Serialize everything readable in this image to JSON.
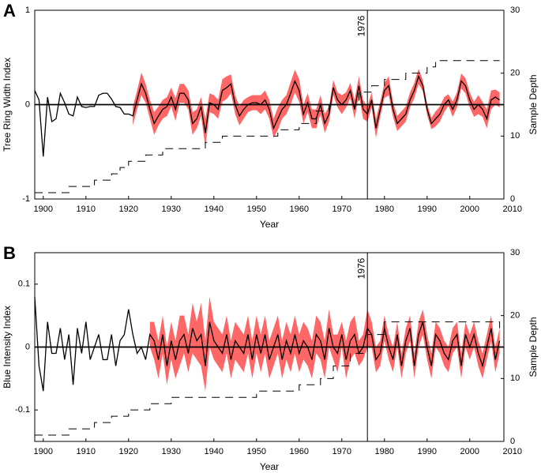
{
  "chart_data": [
    {
      "type": "line",
      "panel_label": "A",
      "ylabel": "Tree Ring Width Index",
      "xlabel": "Year",
      "y2label": "Sample Depth",
      "vline": 1976,
      "xlim": [
        1898,
        2008
      ],
      "xticks": [
        1900,
        1910,
        1920,
        1930,
        1940,
        1950,
        1960,
        1970,
        1980,
        1990,
        2000,
        2010
      ],
      "ylim": [
        -1,
        1
      ],
      "yticks": [
        -1,
        0,
        1
      ],
      "y2lim": [
        0,
        30
      ],
      "y2ticks": [
        0,
        10,
        20,
        30
      ],
      "band_color": "#ff6666",
      "x": [
        1898,
        1899,
        1900,
        1901,
        1902,
        1903,
        1904,
        1905,
        1906,
        1907,
        1908,
        1909,
        1910,
        1911,
        1912,
        1913,
        1914,
        1915,
        1916,
        1917,
        1918,
        1919,
        1920,
        1921,
        1922,
        1923,
        1924,
        1925,
        1926,
        1927,
        1928,
        1929,
        1930,
        1931,
        1932,
        1933,
        1934,
        1935,
        1936,
        1937,
        1938,
        1939,
        1940,
        1941,
        1942,
        1943,
        1944,
        1945,
        1946,
        1947,
        1948,
        1949,
        1950,
        1951,
        1952,
        1953,
        1954,
        1955,
        1956,
        1957,
        1958,
        1959,
        1960,
        1961,
        1962,
        1963,
        1964,
        1965,
        1966,
        1967,
        1968,
        1969,
        1970,
        1971,
        1972,
        1973,
        1974,
        1975,
        1976,
        1977,
        1978,
        1979,
        1980,
        1981,
        1982,
        1983,
        1984,
        1985,
        1986,
        1987,
        1988,
        1989,
        1990,
        1991,
        1992,
        1993,
        1994,
        1995,
        1996,
        1997,
        1998,
        1999,
        2000,
        2001,
        2002,
        2003,
        2004,
        2005,
        2006,
        2007
      ],
      "series": [
        {
          "color": "#000000",
          "values": [
            0.15,
            0.05,
            -0.55,
            0.08,
            -0.18,
            -0.15,
            0.12,
            0.02,
            -0.1,
            -0.12,
            0.08,
            -0.02,
            -0.03,
            -0.02,
            -0.02,
            0.1,
            0.12,
            0.12,
            0.06,
            -0.02,
            -0.03,
            -0.1,
            -0.1,
            -0.12,
            0.05,
            0.22,
            0.12,
            -0.05,
            -0.2,
            -0.12,
            -0.05,
            -0.02,
            0.08,
            -0.05,
            0.12,
            0.12,
            0.05,
            -0.2,
            -0.15,
            -0.02,
            -0.3,
            0.02,
            0.0,
            -0.05,
            0.15,
            0.18,
            0.22,
            0.0,
            -0.12,
            -0.05,
            0.0,
            0.02,
            0.02,
            0.0,
            0.05,
            -0.05,
            -0.25,
            -0.15,
            -0.05,
            0.0,
            0.12,
            0.25,
            0.15,
            -0.1,
            0.02,
            -0.15,
            -0.15,
            0.0,
            -0.2,
            -0.1,
            0.18,
            0.05,
            0.0,
            0.05,
            0.15,
            -0.05,
            0.2,
            -0.05,
            -0.1,
            0.05,
            -0.25,
            -0.05,
            0.15,
            0.2,
            -0.05,
            -0.2,
            -0.15,
            -0.1,
            0.05,
            0.15,
            0.3,
            0.2,
            -0.05,
            -0.2,
            -0.15,
            -0.1,
            0.0,
            0.05,
            -0.05,
            0.05,
            0.25,
            0.2,
            0.05,
            -0.05,
            0.0,
            -0.05,
            -0.15,
            0.05,
            0.08,
            0.05
          ],
          "spread": [
            null,
            null,
            null,
            null,
            null,
            null,
            null,
            null,
            null,
            null,
            null,
            null,
            null,
            null,
            null,
            null,
            null,
            null,
            null,
            null,
            null,
            null,
            null,
            0.1,
            0.1,
            0.12,
            0.1,
            0.1,
            0.12,
            0.1,
            0.1,
            0.1,
            0.1,
            0.12,
            0.1,
            0.1,
            0.1,
            0.12,
            0.1,
            0.1,
            0.15,
            0.1,
            0.1,
            0.1,
            0.12,
            0.12,
            0.1,
            0.1,
            0.1,
            0.1,
            0.08,
            0.08,
            0.08,
            0.1,
            0.1,
            0.1,
            0.1,
            0.12,
            0.1,
            0.1,
            0.12,
            0.12,
            0.12,
            0.1,
            0.1,
            0.1,
            0.1,
            0.1,
            0.1,
            0.08,
            0.08,
            0.08,
            0.1,
            0.08,
            0.08,
            0.1,
            0.1,
            0.1,
            0.08,
            0.08,
            0.1,
            0.08,
            0.08,
            0.1,
            0.08,
            0.08,
            0.08,
            0.08,
            0.08,
            0.08,
            0.08,
            0.06,
            0.06,
            0.06,
            0.08,
            0.08,
            0.08,
            0.06,
            0.08,
            0.08,
            0.08,
            0.08,
            0.08,
            0.08,
            0.1,
            0.08,
            0.1,
            0.1,
            0.08,
            0.08
          ]
        },
        {
          "axis": "y2",
          "color": "#000000",
          "dash": true,
          "x": [
            1898,
            1906,
            1912,
            1916,
            1918,
            1920,
            1924,
            1928,
            1932,
            1938,
            1942,
            1950,
            1955,
            1960,
            1964,
            1967,
            1970,
            1974,
            1977,
            1980,
            1985,
            1990,
            1992,
            2007
          ],
          "values": [
            1,
            2,
            3,
            4,
            5,
            6,
            7,
            8,
            8,
            9,
            10,
            10,
            11,
            12,
            14,
            15,
            15,
            17,
            18,
            19,
            20,
            21,
            22,
            22
          ]
        }
      ]
    },
    {
      "type": "line",
      "panel_label": "B",
      "ylabel": "Blue Intensity Index",
      "xlabel": "Year",
      "y2label": "Sample Depth",
      "vline": 1976,
      "xlim": [
        1898,
        2008
      ],
      "xticks": [
        1900,
        1910,
        1920,
        1930,
        1940,
        1950,
        1960,
        1970,
        1980,
        1990,
        2000,
        2010
      ],
      "ylim": [
        -0.15,
        0.15
      ],
      "yticks": [
        -0.1,
        0,
        0.1
      ],
      "y2lim": [
        0,
        30
      ],
      "y2ticks": [
        0,
        10,
        20,
        30
      ],
      "band_color": "#ff6666",
      "x": [
        1898,
        1899,
        1900,
        1901,
        1902,
        1903,
        1904,
        1905,
        1906,
        1907,
        1908,
        1909,
        1910,
        1911,
        1912,
        1913,
        1914,
        1915,
        1916,
        1917,
        1918,
        1919,
        1920,
        1921,
        1922,
        1923,
        1924,
        1925,
        1926,
        1927,
        1928,
        1929,
        1930,
        1931,
        1932,
        1933,
        1934,
        1935,
        1936,
        1937,
        1938,
        1939,
        1940,
        1941,
        1942,
        1943,
        1944,
        1945,
        1946,
        1947,
        1948,
        1949,
        1950,
        1951,
        1952,
        1953,
        1954,
        1955,
        1956,
        1957,
        1958,
        1959,
        1960,
        1961,
        1962,
        1963,
        1964,
        1965,
        1966,
        1967,
        1968,
        1969,
        1970,
        1971,
        1972,
        1973,
        1974,
        1975,
        1976,
        1977,
        1978,
        1979,
        1980,
        1981,
        1982,
        1983,
        1984,
        1985,
        1986,
        1987,
        1988,
        1989,
        1990,
        1991,
        1992,
        1993,
        1994,
        1995,
        1996,
        1997,
        1998,
        1999,
        2000,
        2001,
        2002,
        2003,
        2004,
        2005,
        2006,
        2007
      ],
      "series": [
        {
          "color": "#000000",
          "values": [
            0.08,
            -0.03,
            -0.07,
            0.04,
            -0.01,
            -0.01,
            0.03,
            -0.02,
            0.02,
            -0.06,
            0.03,
            -0.01,
            0.04,
            -0.02,
            0.0,
            0.02,
            -0.02,
            -0.02,
            0.02,
            -0.03,
            0.01,
            0.02,
            0.06,
            0.02,
            -0.01,
            0.0,
            -0.02,
            0.02,
            0.01,
            -0.02,
            0.02,
            -0.03,
            0.01,
            -0.02,
            0.01,
            0.02,
            -0.01,
            0.03,
            0.01,
            0.02,
            -0.03,
            0.04,
            0.01,
            0.0,
            -0.01,
            0.02,
            -0.02,
            0.01,
            0.0,
            -0.01,
            0.02,
            -0.02,
            0.02,
            -0.01,
            0.02,
            -0.02,
            0.0,
            0.02,
            -0.02,
            0.01,
            -0.01,
            0.02,
            -0.01,
            0.01,
            0.0,
            -0.02,
            0.02,
            0.01,
            -0.02,
            0.03,
            0.0,
            -0.01,
            0.02,
            -0.02,
            0.01,
            0.02,
            -0.01,
            0.0,
            0.03,
            0.02,
            -0.02,
            -0.01,
            0.03,
            0.0,
            -0.02,
            0.02,
            -0.03,
            0.01,
            0.03,
            -0.03,
            0.02,
            0.04,
            0.0,
            -0.03,
            0.02,
            0.01,
            -0.01,
            -0.02,
            0.01,
            0.02,
            -0.03,
            0.02,
            0.0,
            0.02,
            -0.01,
            -0.03,
            0.0,
            0.03,
            -0.02,
            0.01
          ],
          "spread": [
            null,
            null,
            null,
            null,
            null,
            null,
            null,
            null,
            null,
            null,
            null,
            null,
            null,
            null,
            null,
            null,
            null,
            null,
            null,
            null,
            null,
            null,
            null,
            null,
            null,
            null,
            null,
            0.02,
            0.03,
            0.03,
            0.03,
            0.03,
            0.03,
            0.03,
            0.04,
            0.03,
            0.03,
            0.04,
            0.03,
            0.05,
            0.04,
            0.04,
            0.03,
            0.03,
            0.03,
            0.03,
            0.03,
            0.03,
            0.03,
            0.03,
            0.03,
            0.03,
            0.03,
            0.03,
            0.03,
            0.03,
            0.03,
            0.03,
            0.03,
            0.03,
            0.03,
            0.03,
            0.03,
            0.03,
            0.03,
            0.03,
            0.03,
            0.03,
            0.03,
            0.03,
            0.02,
            0.03,
            0.02,
            0.03,
            0.03,
            0.03,
            0.02,
            0.02,
            0.03,
            0.02,
            0.02,
            0.02,
            0.02,
            0.02,
            0.02,
            0.02,
            0.02,
            0.02,
            0.02,
            0.02,
            0.02,
            0.02,
            0.02,
            0.02,
            0.02,
            0.02,
            0.02,
            0.02,
            0.02,
            0.02,
            0.02,
            0.02,
            0.02,
            0.02,
            0.02,
            0.02,
            0.02,
            0.02,
            0.02,
            0.02
          ]
        },
        {
          "axis": "y2",
          "color": "#000000",
          "dash": true,
          "x": [
            1898,
            1906,
            1912,
            1916,
            1920,
            1925,
            1930,
            1940,
            1950,
            1955,
            1960,
            1965,
            1968,
            1972,
            1976,
            1980,
            2006,
            2007
          ],
          "values": [
            1,
            2,
            3,
            4,
            5,
            6,
            7,
            7,
            8,
            8,
            9,
            10,
            12,
            14,
            17,
            19,
            19,
            18
          ]
        }
      ]
    }
  ]
}
